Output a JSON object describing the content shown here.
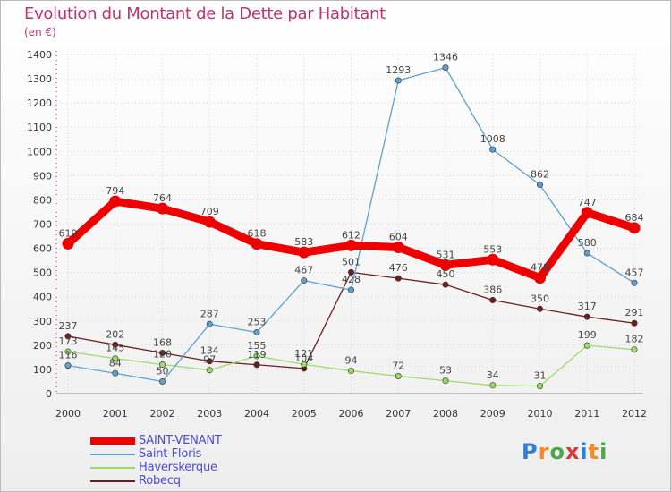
{
  "header": {
    "title": "Evolution du Montant de la Dette par Habitant",
    "subtitle": "(en €)"
  },
  "logo": {
    "text": "Proxiti",
    "colors": [
      "#2f7fd8",
      "#f28c28",
      "#4aa84a",
      "#d83a3a",
      "#2f7fd8",
      "#f28c28",
      "#4aa84a"
    ]
  },
  "chart_data": {
    "type": "line",
    "categories": [
      "2000",
      "2001",
      "2002",
      "2003",
      "2004",
      "2005",
      "2006",
      "2007",
      "2008",
      "2009",
      "2010",
      "2011",
      "2012"
    ],
    "ylim": [
      0,
      1400
    ],
    "yticks": [
      0,
      100,
      200,
      300,
      400,
      500,
      600,
      700,
      800,
      900,
      1000,
      1100,
      1200,
      1300,
      1400
    ],
    "grid": true,
    "legend_position": "bottom-left",
    "series": [
      {
        "name": "SAINT-VENANT",
        "color": "#ee0000",
        "values": [
          619,
          794,
          764,
          709,
          618,
          583,
          612,
          604,
          531,
          553,
          478,
          747,
          684
        ],
        "labels": [
          "619",
          "794",
          "764",
          "709",
          "618",
          "583",
          "612",
          "604",
          "531",
          "553",
          "478",
          "747",
          "684"
        ]
      },
      {
        "name": "Saint-Floris",
        "color": "#5fa0cf",
        "values": [
          116,
          84,
          50,
          287,
          253,
          467,
          428,
          1293,
          1346,
          1008,
          862,
          580,
          457
        ],
        "labels": [
          "116",
          "84",
          "50",
          "287",
          "253",
          "467",
          "428",
          "1293",
          "1346",
          "1008",
          "862",
          "580",
          "457"
        ]
      },
      {
        "name": "Haverskerque",
        "color": "#99dd66",
        "values": [
          173,
          145,
          120,
          97,
          155,
          121,
          94,
          72,
          53,
          34,
          31,
          199,
          182
        ],
        "labels": [
          "173",
          "145",
          "120",
          "97",
          "155",
          "121",
          "94",
          "72",
          "53",
          "34",
          "31",
          "199",
          "182"
        ]
      },
      {
        "name": "Robecq",
        "color": "#6b1f1f",
        "values": [
          237,
          202,
          168,
          134,
          119,
          104,
          501,
          476,
          450,
          386,
          350,
          317,
          291
        ],
        "labels": [
          "237",
          "202",
          "168",
          "134",
          "119",
          "104",
          "501",
          "476",
          "450",
          "386",
          "350",
          "317",
          "291"
        ]
      }
    ]
  }
}
